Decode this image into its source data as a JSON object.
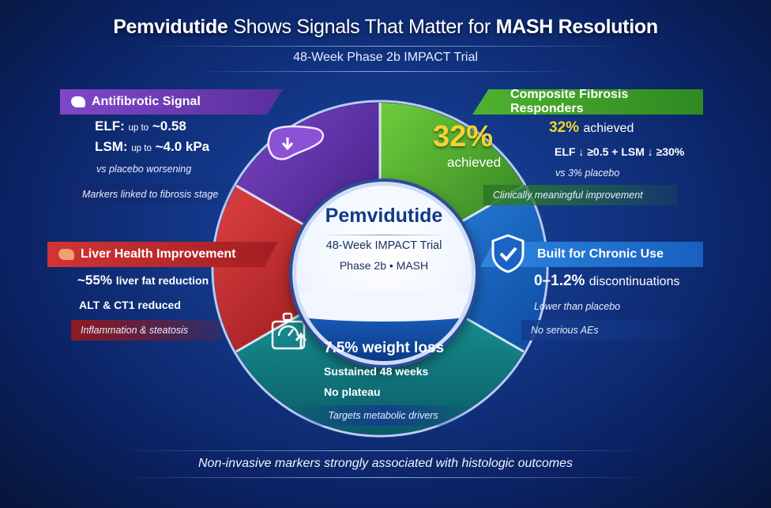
{
  "header": {
    "title_drug": "Pemvidutide",
    "title_mid": "Shows Signals That Matter for",
    "title_end": "MASH Resolution",
    "subtitle": "48-Week Phase 2b IMPACT Trial"
  },
  "hub": {
    "title": "Pemvidutide",
    "line1": "48-Week IMPACT Trial",
    "line2": "Phase 2b • MASH"
  },
  "antifibrotic": {
    "heading": "Antifibrotic Signal",
    "elf_label": "ELF:",
    "elf_prefix": "up to",
    "elf_value": "~0.58",
    "lsm_label": "LSM:",
    "lsm_prefix": "up to",
    "lsm_value": "~4.0 kPa",
    "note": "vs placebo worsening",
    "footer": "Markers linked to fibrosis stage",
    "icon": "liver-down-arrow-icon"
  },
  "composite": {
    "heading": "Composite Fibrosis Responders",
    "big_value": "32%",
    "big_label": "achieved",
    "value": "32%",
    "value_label": "achieved",
    "criteria": "ELF ↓ ≥0.5 + LSM ↓ ≥30%",
    "note": "vs 3% placebo",
    "footer": "Clinically meaningful improvement"
  },
  "liver": {
    "heading": "Liver Health Improvement",
    "fat_value": "~55%",
    "fat_label": "liver fat reduction",
    "enzymes": "ALT & CT1 reduced",
    "footer": "Inflammation & steatosis",
    "icon": "liver-icon"
  },
  "chronic": {
    "heading": "Built for Chronic Use",
    "value": "0–1.2%",
    "value_label": "discontinuations",
    "note": "Lower than placebo",
    "footer": "No serious AEs",
    "icon": "shield-check-icon"
  },
  "weight": {
    "value": "7.5%",
    "value_label": "weight loss",
    "line1": "Sustained 48 weeks",
    "line2": "No plateau",
    "footer": "Targets metabolic drivers",
    "icon": "scale-arrow-icon"
  },
  "footer_text": "Non-invasive markers strongly associated with histologic outcomes",
  "colors": {
    "purple": "#5a2f9e",
    "green": "#3f9a2c",
    "red": "#c3282b",
    "blue": "#1a6fd0",
    "teal": "#137f7c",
    "gold": "#f5d330"
  }
}
